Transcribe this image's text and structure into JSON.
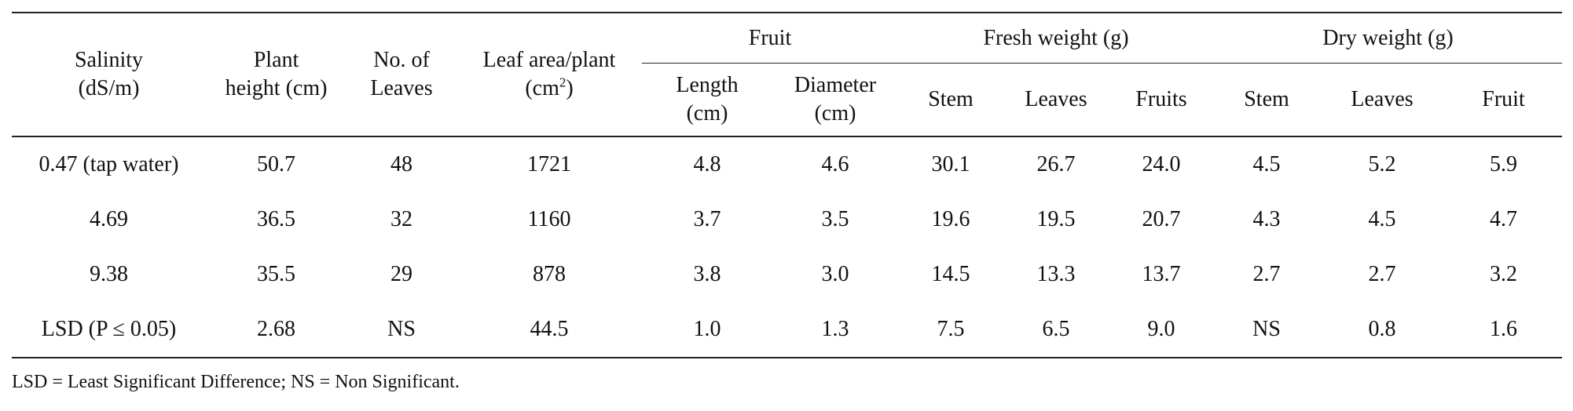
{
  "table": {
    "header": {
      "columns": [
        "Salinity\n(dS/m)",
        "Plant\nheight (cm)",
        "No. of\nLeaves"
      ],
      "leaf_area": {
        "text": "Leaf area/plant\n(cm",
        "sup": "2",
        "after": ")"
      },
      "groups": [
        "Fruit",
        "Fresh weight (g)",
        "Dry weight (g)"
      ],
      "subcolumns": [
        "Length\n(cm)",
        "Diameter\n(cm)",
        "Stem",
        "Leaves",
        "Fruits",
        "Stem",
        "Leaves",
        "Fruit"
      ]
    },
    "rows": [
      [
        "0.47 (tap water)",
        "50.7",
        "48",
        "1721",
        "4.8",
        "4.6",
        "30.1",
        "26.7",
        "24.0",
        "4.5",
        "5.2",
        "5.9"
      ],
      [
        "4.69",
        "36.5",
        "32",
        "1160",
        "3.7",
        "3.5",
        "19.6",
        "19.5",
        "20.7",
        "4.3",
        "4.5",
        "4.7"
      ],
      [
        "9.38",
        "35.5",
        "29",
        "878",
        "3.8",
        "3.0",
        "14.5",
        "13.3",
        "13.7",
        "2.7",
        "2.7",
        "3.2"
      ],
      [
        "LSD (P ≤ 0.05)",
        "2.68",
        "NS",
        "44.5",
        "1.0",
        "1.3",
        "7.5",
        "6.5",
        "9.0",
        "NS",
        "0.8",
        "1.6"
      ]
    ],
    "footnote": "LSD = Least Significant Difference; NS = Non Significant."
  }
}
